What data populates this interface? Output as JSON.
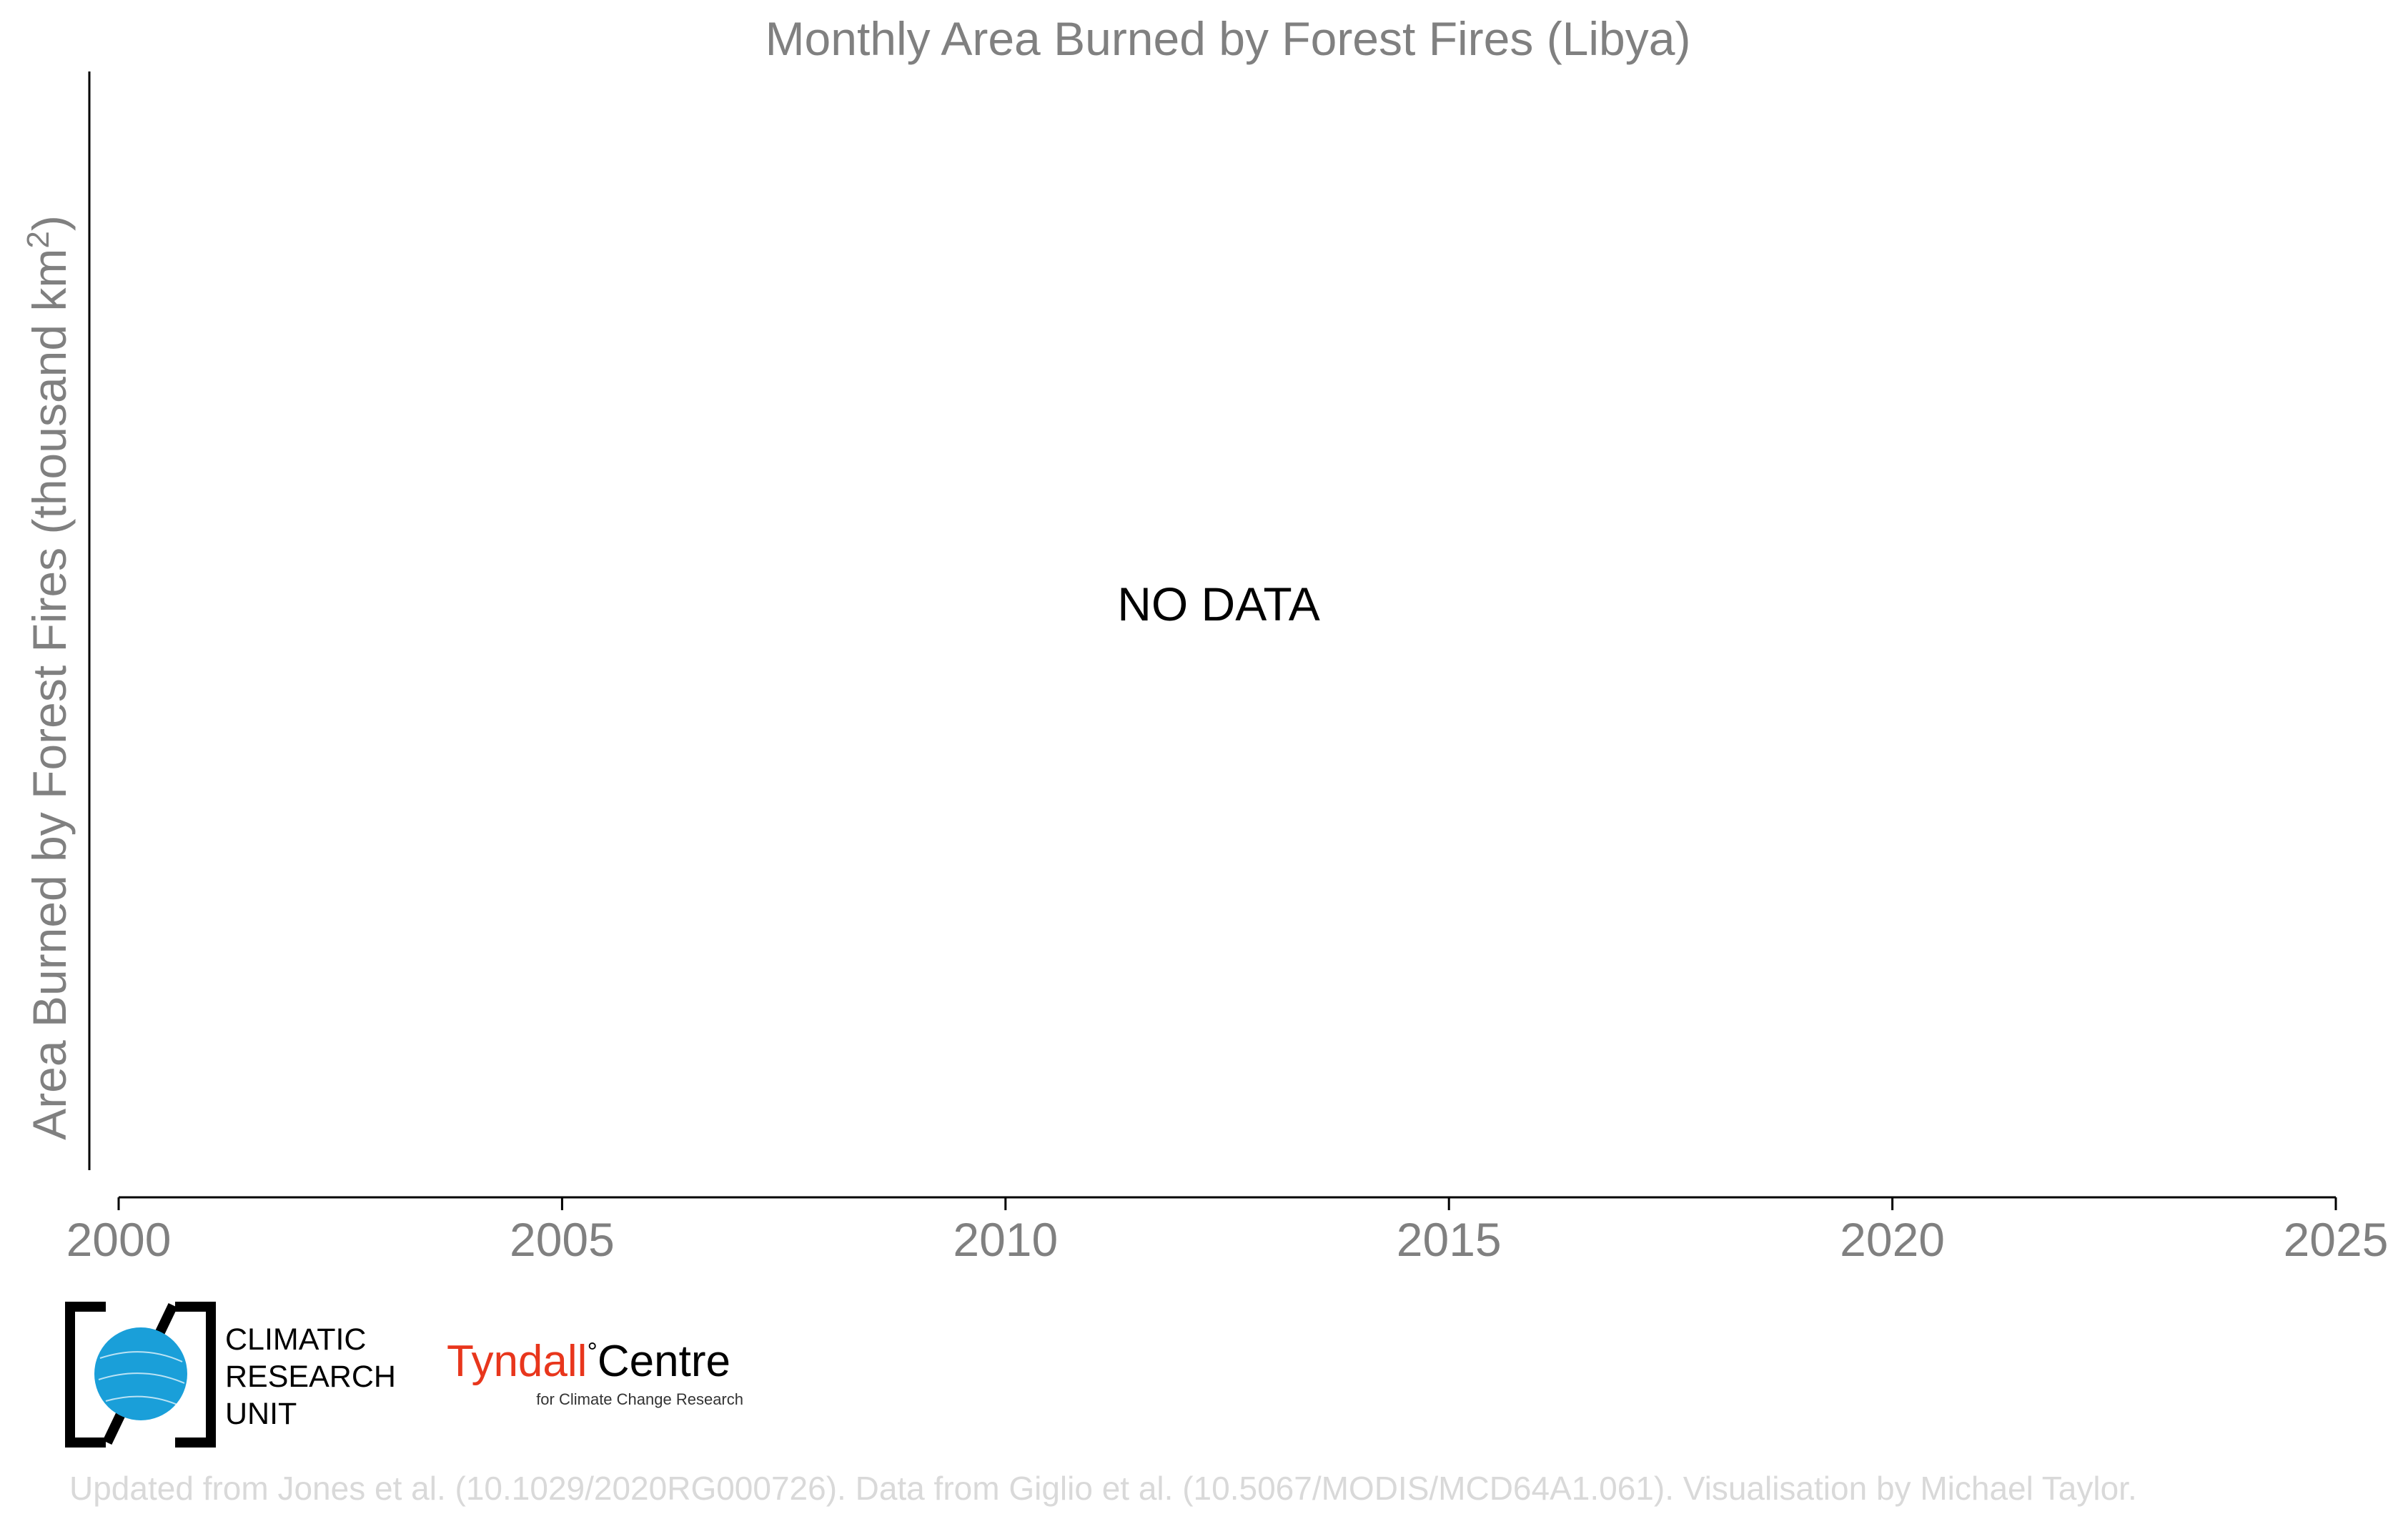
{
  "chart_data": {
    "type": "line",
    "title": "Monthly Area Burned by Forest Fires (Libya)",
    "ylabel": "Area Burned by Forest Fires (thousand km²)",
    "ylabel_main": "Area Burned by Forest Fires (thousand km",
    "ylabel_sup": "2",
    "ylabel_close": ")",
    "xlabel": "",
    "xlim": [
      2000,
      2025
    ],
    "xticks": [
      2000,
      2005,
      2010,
      2015,
      2020,
      2025
    ],
    "xtick_labels": [
      "2000",
      "2005",
      "2010",
      "2015",
      "2020",
      "2025"
    ],
    "series": [],
    "annotation": "NO DATA",
    "grid": false
  },
  "logos": {
    "cru": [
      "CLIMATIC",
      "RESEARCH",
      "UNIT"
    ],
    "tyndall_name": "Tyndall",
    "tyndall_degree": "°",
    "tyndall_centre": "Centre",
    "tyndall_sub": "for Climate Change Research"
  },
  "credit": "Updated from Jones et al. (10.1029/2020RG000726). Data from Giglio et al. (10.5067/MODIS/MCD64A1.061). Visualisation by Michael Taylor.",
  "colors": {
    "text": "#808080",
    "axis": "#000000",
    "cru_blue": "#1a9fd9",
    "tyndall_red": "#e8361c",
    "credit": "#d9d9d9"
  }
}
